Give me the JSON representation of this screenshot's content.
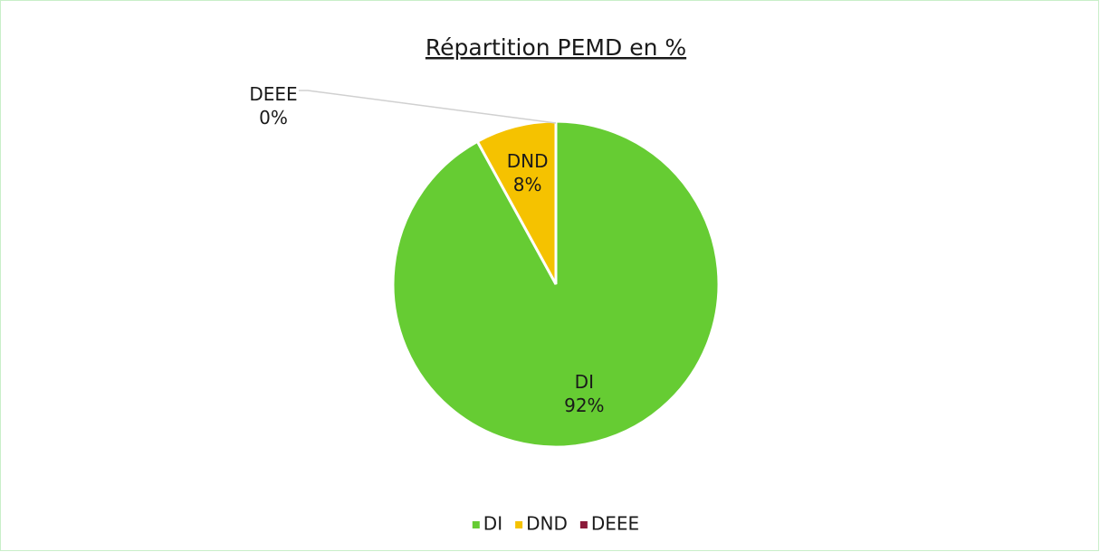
{
  "chart_data": {
    "type": "pie",
    "title": "Répartition PEMD en %",
    "categories": [
      "DI",
      "DND",
      "DEEE"
    ],
    "values": [
      92,
      8,
      0
    ],
    "value_labels": [
      "92%",
      "8%",
      "0%"
    ],
    "colors": [
      "#66cc33",
      "#f5c200",
      "#8b1a3a"
    ],
    "legend": "bottom"
  }
}
